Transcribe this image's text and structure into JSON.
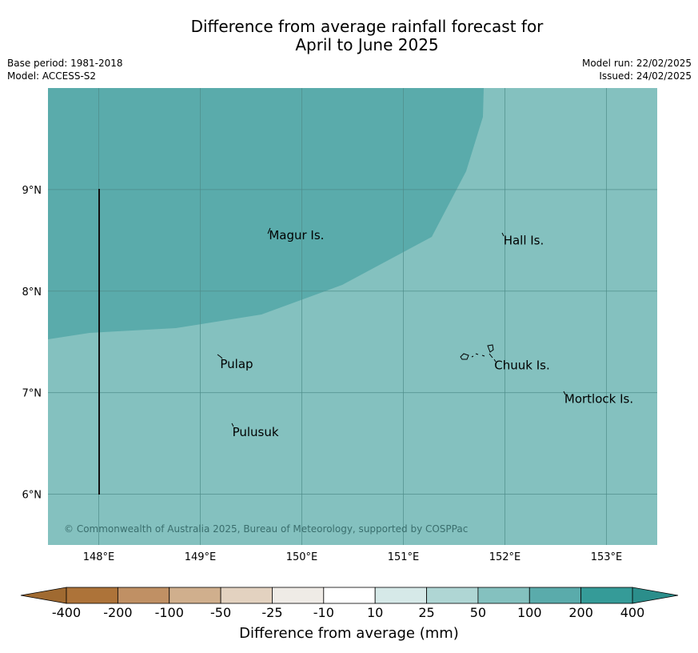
{
  "title": {
    "line1": "Difference from average rainfall forecast for",
    "line2": "April to June 2025"
  },
  "meta": {
    "base_period": "Base period: 1981-2018",
    "model": "Model: ACCESS-S2",
    "model_run": "Model run: 22/02/2025",
    "issued": "Issued: 24/02/2025"
  },
  "map": {
    "lon_range": [
      147.5,
      153.5
    ],
    "lat_range": [
      5.5,
      10
    ],
    "lon_ticks": [
      {
        "value": 148,
        "label": "148°E"
      },
      {
        "value": 149,
        "label": "149°E"
      },
      {
        "value": 150,
        "label": "150°E"
      },
      {
        "value": 151,
        "label": "151°E"
      },
      {
        "value": 152,
        "label": "152°E"
      },
      {
        "value": 153,
        "label": "153°E"
      }
    ],
    "lat_ticks": [
      {
        "value": 9,
        "label": "9°N"
      },
      {
        "value": 8,
        "label": "8°N"
      },
      {
        "value": 7,
        "label": "7°N"
      },
      {
        "value": 6,
        "label": "6°N"
      }
    ],
    "fill_colors": {
      "band_50_100": "#84c1bf",
      "band_100_200": "#5aabab"
    },
    "places": [
      {
        "name": "Magur Is.",
        "lon": 149.66,
        "lat": 8.55
      },
      {
        "name": "Hall Is.",
        "lon": 151.97,
        "lat": 8.5
      },
      {
        "name": "Pulap",
        "lon": 149.18,
        "lat": 7.28
      },
      {
        "name": "Chuuk Is.",
        "lon": 151.88,
        "lat": 7.27
      },
      {
        "name": "Mortlock Is.",
        "lon": 152.57,
        "lat": 6.94
      },
      {
        "name": "Pulusuk",
        "lon": 149.3,
        "lat": 6.61
      }
    ],
    "copyright": "© Commonwealth of Australia 2025, Bureau of Meteorology, supported by COSPPac"
  },
  "colorbar": {
    "title": "Difference from average (mm)",
    "labels": [
      "-400",
      "-200",
      "-100",
      "-50",
      "-25",
      "-10",
      "10",
      "25",
      "50",
      "100",
      "200",
      "400"
    ],
    "colors": [
      "#ad7339",
      "#c09064",
      "#d0af8d",
      "#e3d2c0",
      "#efebe6",
      "#ffffff",
      "#d6e9e8",
      "#afd6d4",
      "#84c1bf",
      "#5aabab",
      "#359b98"
    ],
    "under_color": "#a06a31",
    "over_color": "#2b8e8b"
  }
}
